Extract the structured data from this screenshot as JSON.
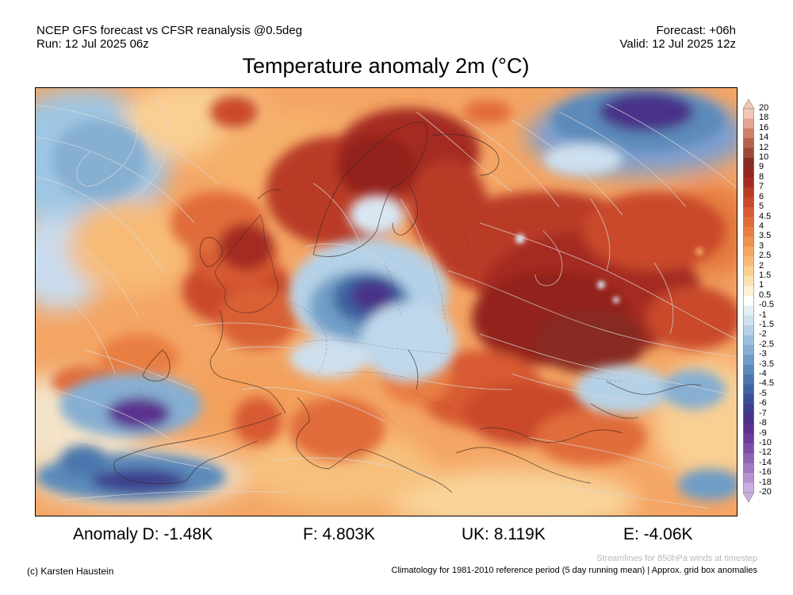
{
  "header": {
    "line1_left": "NCEP GFS forecast vs CFSR reanalysis @0.5deg",
    "line2_left": "Run: 12 Jul 2025 06z",
    "line1_right": "Forecast: +06h",
    "line2_right": "Valid: 12 Jul 2025 12z"
  },
  "title": "Temperature anomaly 2m (°C)",
  "colorbar": {
    "labels": [
      "20",
      "18",
      "16",
      "14",
      "12",
      "10",
      "9",
      "8",
      "7",
      "6",
      "5",
      "4.5",
      "4",
      "3.5",
      "3",
      "2.5",
      "2",
      "1.5",
      "1",
      "0.5",
      "-0.5",
      "-1",
      "-1.5",
      "-2",
      "-2.5",
      "-3",
      "-3.5",
      "-4",
      "-4.5",
      "-5",
      "-6",
      "-7",
      "-8",
      "-9",
      "-10",
      "-12",
      "-14",
      "-16",
      "-18",
      "-20"
    ],
    "colors": [
      "#f1c8b5",
      "#e2a58f",
      "#cf8268",
      "#b5634c",
      "#9b4a38",
      "#872c22",
      "#93241e",
      "#a52b22",
      "#b93a27",
      "#c9492c",
      "#d75a33",
      "#e16c3a",
      "#e97e43",
      "#ef924f",
      "#f4a660",
      "#f7bb77",
      "#f9cf93",
      "#fbe1b2",
      "#fdf0d5",
      "#ffffff",
      "#e4eef6",
      "#cde0ef",
      "#b5d1e7",
      "#9dc1dd",
      "#86afd2",
      "#709dc6",
      "#5c8aba",
      "#4b77ae",
      "#3e63a1",
      "#3b4f96",
      "#3e3f8d",
      "#4a3389",
      "#5b3290",
      "#6c3d9b",
      "#7d4ea6",
      "#8f62b3",
      "#a178c2",
      "#b592d1",
      "#c9afe0"
    ]
  },
  "stats": {
    "d": "Anomaly D: -1.48K",
    "f": "F: 4.803K",
    "uk": "UK: 8.119K",
    "e": "E: -4.06K"
  },
  "footer": {
    "streamlines": "Streamlines for 850hPa winds at timestep",
    "copyright": "(c) Karsten Haustein",
    "climatology": "Climatology for 1981-2010 reference period (5 day running mean) | Approx. grid box anomalies"
  }
}
